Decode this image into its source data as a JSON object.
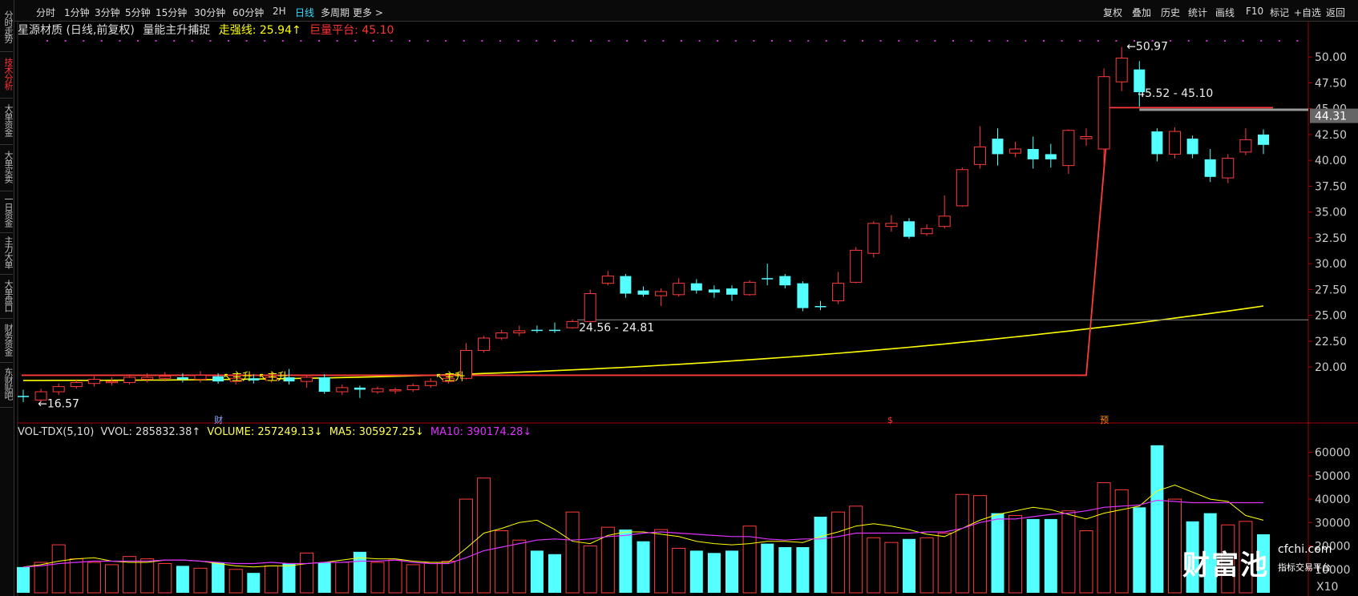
{
  "sidebar": {
    "tabs": [
      {
        "label": "分时走势",
        "active": false
      },
      {
        "label": "技术分析",
        "active": true
      },
      {
        "label": "大单资金",
        "active": false
      },
      {
        "label": "大单买卖",
        "active": false
      },
      {
        "label": "一日资金",
        "active": false
      },
      {
        "label": "主力大单",
        "active": false
      },
      {
        "label": "大单盘口",
        "active": false
      },
      {
        "label": "财务资金",
        "active": false
      },
      {
        "label": "东财贴吧",
        "active": false
      }
    ]
  },
  "toolbar": {
    "periods": [
      "分时",
      "1分钟",
      "3分钟",
      "5分钟",
      "15分钟",
      "30分钟",
      "60分钟",
      "2H",
      "日线",
      "多周期",
      "更多 >"
    ],
    "active_period": "日线",
    "right_buttons": [
      "复权",
      "叠加",
      "历史",
      "统计",
      "画线",
      "F10",
      "标记",
      "+自选",
      "返回"
    ]
  },
  "info": {
    "title": "星源材质 (日线,前复权)",
    "indicator": "量能主升捕捉",
    "strong_line": "走强线: 25.94↑",
    "huge_platform": "巨量平台: 45.10"
  },
  "vol_info": {
    "name": "VOL-TDX(5,10)",
    "vvol": "VVOL: 285832.38↑",
    "volume": "VOLUME: 257249.13↓",
    "ma5": "MA5: 305927.25↓",
    "ma10": "MA10: 390174.28↓"
  },
  "colors": {
    "up": "#ff3b3b",
    "down": "#54ffff",
    "yellow": "#ffff00",
    "ma5": "#ffff00",
    "ma10": "#dd33ff",
    "bg": "#000000"
  },
  "chart_data": [
    {
      "type": "candlestick",
      "y_ticks": [
        "50.00",
        "47.50",
        "45.00",
        "42.50",
        "40.00",
        "37.50",
        "35.00",
        "32.50",
        "30.00",
        "27.50",
        "25.00",
        "22.50",
        "20.00"
      ],
      "ylim": [
        15.2,
        51.8
      ],
      "candles": [
        {
          "o": 17.2,
          "c": 17.2,
          "h": 17.8,
          "l": 16.6,
          "d": 0
        },
        {
          "o": 16.8,
          "c": 17.6,
          "h": 17.9,
          "l": 16.57,
          "d": 1
        },
        {
          "o": 17.6,
          "c": 18.1,
          "h": 18.4,
          "l": 17.3,
          "d": 1
        },
        {
          "o": 18.1,
          "c": 18.5,
          "h": 18.8,
          "l": 17.9,
          "d": 1
        },
        {
          "o": 18.4,
          "c": 18.8,
          "h": 19.1,
          "l": 18.1,
          "d": 1
        },
        {
          "o": 18.6,
          "c": 18.5,
          "h": 19.0,
          "l": 18.2,
          "d": 1
        },
        {
          "o": 18.5,
          "c": 19.0,
          "h": 19.3,
          "l": 18.3,
          "d": 1
        },
        {
          "o": 18.8,
          "c": 19.0,
          "h": 19.4,
          "l": 18.5,
          "d": 1
        },
        {
          "o": 18.9,
          "c": 19.1,
          "h": 19.5,
          "l": 18.6,
          "d": 1
        },
        {
          "o": 19.0,
          "c": 18.8,
          "h": 19.4,
          "l": 18.5,
          "d": 0
        },
        {
          "o": 18.8,
          "c": 19.2,
          "h": 19.6,
          "l": 18.5,
          "d": 1
        },
        {
          "o": 19.1,
          "c": 18.6,
          "h": 19.4,
          "l": 18.4,
          "d": 0
        },
        {
          "o": 18.6,
          "c": 18.9,
          "h": 19.2,
          "l": 18.3,
          "d": 1
        },
        {
          "o": 18.9,
          "c": 18.7,
          "h": 19.3,
          "l": 18.4,
          "d": 0
        },
        {
          "o": 18.7,
          "c": 19.0,
          "h": 19.5,
          "l": 18.5,
          "d": 1
        },
        {
          "o": 19.0,
          "c": 18.6,
          "h": 19.8,
          "l": 18.3,
          "d": 0
        },
        {
          "o": 18.6,
          "c": 19.0,
          "h": 19.2,
          "l": 18.0,
          "d": 1
        },
        {
          "o": 19.0,
          "c": 17.6,
          "h": 19.3,
          "l": 17.4,
          "d": 0
        },
        {
          "o": 17.6,
          "c": 18.0,
          "h": 18.3,
          "l": 17.3,
          "d": 1
        },
        {
          "o": 18.0,
          "c": 17.8,
          "h": 18.2,
          "l": 17.0,
          "d": 0
        },
        {
          "o": 17.6,
          "c": 17.9,
          "h": 18.1,
          "l": 17.4,
          "d": 1
        },
        {
          "o": 17.7,
          "c": 17.8,
          "h": 18.0,
          "l": 17.4,
          "d": 1
        },
        {
          "o": 17.8,
          "c": 18.2,
          "h": 18.4,
          "l": 17.6,
          "d": 1
        },
        {
          "o": 18.2,
          "c": 18.6,
          "h": 18.9,
          "l": 18.0,
          "d": 1
        },
        {
          "o": 18.6,
          "c": 18.9,
          "h": 19.2,
          "l": 18.4,
          "d": 1
        },
        {
          "o": 18.9,
          "c": 21.6,
          "h": 22.3,
          "l": 18.8,
          "d": 1
        },
        {
          "o": 21.6,
          "c": 22.8,
          "h": 23.0,
          "l": 21.4,
          "d": 1
        },
        {
          "o": 22.8,
          "c": 23.3,
          "h": 23.6,
          "l": 22.6,
          "d": 1
        },
        {
          "o": 23.3,
          "c": 23.5,
          "h": 24.0,
          "l": 23.0,
          "d": 1
        },
        {
          "o": 23.6,
          "c": 23.6,
          "h": 24.0,
          "l": 23.3,
          "d": 0
        },
        {
          "o": 23.6,
          "c": 23.6,
          "h": 24.3,
          "l": 23.3,
          "d": 0
        },
        {
          "o": 23.8,
          "c": 24.4,
          "h": 24.6,
          "l": 23.7,
          "d": 1
        },
        {
          "o": 24.4,
          "c": 27.1,
          "h": 27.5,
          "l": 24.3,
          "d": 1
        },
        {
          "o": 28.1,
          "c": 28.8,
          "h": 29.3,
          "l": 27.9,
          "d": 1
        },
        {
          "o": 28.8,
          "c": 27.1,
          "h": 29.0,
          "l": 26.7,
          "d": 0
        },
        {
          "o": 27.4,
          "c": 27.0,
          "h": 27.8,
          "l": 26.8,
          "d": 0
        },
        {
          "o": 26.9,
          "c": 27.3,
          "h": 27.6,
          "l": 25.9,
          "d": 1
        },
        {
          "o": 27.0,
          "c": 28.1,
          "h": 28.6,
          "l": 26.8,
          "d": 1
        },
        {
          "o": 28.1,
          "c": 27.4,
          "h": 28.5,
          "l": 27.1,
          "d": 0
        },
        {
          "o": 27.5,
          "c": 27.2,
          "h": 27.9,
          "l": 26.7,
          "d": 0
        },
        {
          "o": 27.6,
          "c": 27.0,
          "h": 27.9,
          "l": 26.4,
          "d": 0
        },
        {
          "o": 27.0,
          "c": 28.2,
          "h": 28.4,
          "l": 26.9,
          "d": 1
        },
        {
          "o": 28.6,
          "c": 28.6,
          "h": 30.0,
          "l": 27.9,
          "d": 0
        },
        {
          "o": 28.8,
          "c": 27.9,
          "h": 29.0,
          "l": 27.6,
          "d": 0
        },
        {
          "o": 28.1,
          "c": 25.7,
          "h": 28.3,
          "l": 25.4,
          "d": 0
        },
        {
          "o": 25.9,
          "c": 25.9,
          "h": 26.4,
          "l": 25.5,
          "d": 0
        },
        {
          "o": 26.4,
          "c": 28.1,
          "h": 29.2,
          "l": 26.1,
          "d": 1
        },
        {
          "o": 28.2,
          "c": 31.3,
          "h": 31.6,
          "l": 28.1,
          "d": 1
        },
        {
          "o": 31.0,
          "c": 33.9,
          "h": 34.1,
          "l": 30.6,
          "d": 1
        },
        {
          "o": 33.6,
          "c": 33.9,
          "h": 34.7,
          "l": 33.1,
          "d": 1
        },
        {
          "o": 34.1,
          "c": 32.6,
          "h": 34.4,
          "l": 32.4,
          "d": 0
        },
        {
          "o": 32.9,
          "c": 33.4,
          "h": 33.8,
          "l": 32.7,
          "d": 1
        },
        {
          "o": 33.6,
          "c": 34.6,
          "h": 36.6,
          "l": 33.4,
          "d": 1
        },
        {
          "o": 35.6,
          "c": 39.1,
          "h": 39.3,
          "l": 35.5,
          "d": 1
        },
        {
          "o": 39.6,
          "c": 41.3,
          "h": 43.3,
          "l": 39.2,
          "d": 1
        },
        {
          "o": 42.1,
          "c": 40.6,
          "h": 43.1,
          "l": 39.5,
          "d": 0
        },
        {
          "o": 40.7,
          "c": 41.1,
          "h": 41.8,
          "l": 40.3,
          "d": 1
        },
        {
          "o": 41.1,
          "c": 40.1,
          "h": 42.3,
          "l": 39.2,
          "d": 0
        },
        {
          "o": 40.6,
          "c": 40.1,
          "h": 41.6,
          "l": 39.3,
          "d": 0
        },
        {
          "o": 39.5,
          "c": 42.9,
          "h": 43.0,
          "l": 38.7,
          "d": 1
        },
        {
          "o": 42.1,
          "c": 42.3,
          "h": 43.1,
          "l": 41.4,
          "d": 1
        },
        {
          "o": 41.1,
          "c": 48.1,
          "h": 48.9,
          "l": 39.6,
          "d": 1
        },
        {
          "o": 47.6,
          "c": 49.9,
          "h": 50.97,
          "l": 46.7,
          "d": 1
        },
        {
          "o": 48.8,
          "c": 46.6,
          "h": 49.6,
          "l": 45.2,
          "d": 0
        },
        {
          "o": 42.8,
          "c": 40.6,
          "h": 43.1,
          "l": 39.9,
          "d": 0
        },
        {
          "o": 40.6,
          "c": 42.8,
          "h": 43.2,
          "l": 40.2,
          "d": 1
        },
        {
          "o": 42.1,
          "c": 40.6,
          "h": 42.4,
          "l": 40.2,
          "d": 0
        },
        {
          "o": 40.1,
          "c": 38.4,
          "h": 41.1,
          "l": 37.9,
          "d": 0
        },
        {
          "o": 38.3,
          "c": 40.2,
          "h": 40.6,
          "l": 37.8,
          "d": 1
        },
        {
          "o": 40.8,
          "c": 42.0,
          "h": 43.1,
          "l": 40.5,
          "d": 1
        },
        {
          "o": 42.5,
          "c": 41.5,
          "h": 43.0,
          "l": 40.6,
          "d": 0
        }
      ],
      "platform_line": {
        "value": 45.1,
        "label": "45.52 - 45.10"
      },
      "support_line": {
        "value": 24.56,
        "label": "24.56 - 24.81"
      },
      "last_price": "44.31",
      "high_label": "50.97",
      "low_label": "16.57",
      "main_rise_label": "主升",
      "markers": [
        "财",
        "$",
        "预"
      ]
    },
    {
      "type": "bar",
      "y_ticks": [
        "60000",
        "50000",
        "40000",
        "30000",
        "20000",
        "10000"
      ],
      "unit": "X10",
      "ylim": [
        0,
        65000
      ],
      "volumes": [
        11000,
        13000,
        20500,
        14500,
        13000,
        12000,
        15500,
        14500,
        12500,
        11500,
        10500,
        13000,
        10000,
        8500,
        11500,
        12500,
        17000,
        13000,
        13000,
        17500,
        13000,
        14000,
        12000,
        13000,
        13500,
        40000,
        49000,
        26500,
        22500,
        18000,
        16500,
        34500,
        20000,
        28000,
        27000,
        22000,
        27000,
        19000,
        18000,
        17000,
        18000,
        28500,
        21000,
        19500,
        19500,
        32500,
        34500,
        37000,
        23500,
        21500,
        23000,
        23500,
        25500,
        42000,
        41500,
        34000,
        33000,
        31500,
        31500,
        35000,
        26500,
        47000,
        44000,
        36500,
        63000,
        40000,
        30500,
        34000,
        29000,
        30500,
        25000
      ],
      "ma5": [
        11000,
        12000,
        13500,
        14500,
        15000,
        13500,
        13000,
        13000,
        14000,
        14000,
        13500,
        12500,
        11500,
        11000,
        11500,
        11500,
        12500,
        13000,
        14000,
        15000,
        14500,
        14500,
        13500,
        13000,
        13000,
        19000,
        25500,
        27500,
        30000,
        31000,
        27000,
        22000,
        21000,
        24500,
        26000,
        26000,
        25000,
        24000,
        22000,
        21000,
        20500,
        21000,
        22000,
        22000,
        21500,
        24000,
        26000,
        28500,
        29500,
        28500,
        27000,
        25000,
        24000,
        27500,
        31000,
        33500,
        35000,
        36500,
        35500,
        33500,
        31500,
        34000,
        35500,
        37000,
        43500,
        46000,
        43000,
        40000,
        39000,
        33000,
        31000
      ],
      "ma10": [
        11000,
        11500,
        12500,
        13000,
        13500,
        13500,
        13500,
        13500,
        14000,
        14000,
        13500,
        13000,
        12500,
        12500,
        13000,
        12500,
        12500,
        13000,
        13000,
        13500,
        13500,
        14000,
        13000,
        12500,
        12500,
        15000,
        18000,
        19500,
        21000,
        22500,
        23000,
        22500,
        23000,
        24000,
        24500,
        25500,
        26000,
        25500,
        25000,
        24500,
        24000,
        24000,
        23000,
        22500,
        23000,
        23000,
        24000,
        25500,
        25500,
        25500,
        25500,
        26000,
        26000,
        27500,
        30000,
        31500,
        31500,
        32500,
        33500,
        34000,
        35000,
        36500,
        37000,
        37500,
        39500,
        39000,
        38500,
        38500,
        38500,
        38500,
        38500
      ]
    }
  ],
  "watermark": {
    "brand": "财富池",
    "site": "cfchi.com",
    "sub": "指标交易平台"
  }
}
